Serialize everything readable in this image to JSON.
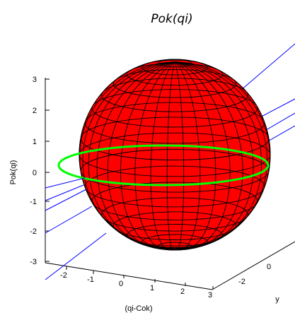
{
  "chart_data": {
    "type": "3d-surface",
    "title": "Pok(qi)",
    "xlabel": "(qi-Cok)",
    "ylabel": "y",
    "zlabel": "Pok(qi)",
    "xticks": [
      "-2",
      "-1",
      "0",
      "1",
      "2",
      "3"
    ],
    "yticks": [
      "-2",
      "0"
    ],
    "zticks": [
      "3",
      "2",
      "1",
      "0",
      "-1",
      "-2",
      "-3"
    ],
    "xlim": [
      -3,
      3
    ],
    "zlim": [
      -3,
      3
    ],
    "surface": {
      "shape": "sphere",
      "radius": 3,
      "color": "#ff0000",
      "edge_color": "#000000"
    },
    "ring": {
      "color": "#00ff00",
      "z": 0
    },
    "line_color": "#0000ff"
  }
}
